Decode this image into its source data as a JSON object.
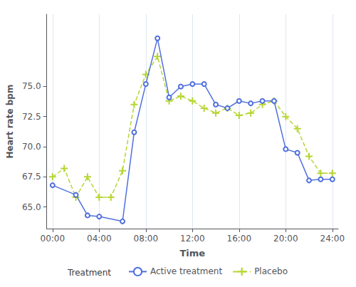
{
  "chart_data": {
    "type": "line",
    "xlabel": "Time",
    "ylabel": "Heart rate bpm",
    "legend_title": "Treatment",
    "series": [
      {
        "name": "Active treatment",
        "x": [
          0,
          2,
          3,
          4,
          6,
          7,
          8,
          9,
          10,
          11,
          12,
          13,
          14,
          15,
          16,
          17,
          18,
          19,
          20,
          21,
          22,
          23,
          24
        ],
        "values": [
          66.8,
          66.0,
          64.3,
          64.2,
          63.8,
          71.2,
          75.2,
          79.0,
          74.1,
          75.0,
          75.2,
          75.2,
          73.5,
          73.2,
          73.8,
          73.6,
          73.8,
          73.8,
          69.8,
          69.5,
          67.2,
          67.3,
          67.3
        ],
        "marker": "circle",
        "line_style": "solid"
      },
      {
        "name": "Placebo",
        "x": [
          0,
          1,
          2,
          3,
          4,
          5,
          6,
          7,
          8,
          9,
          10,
          11,
          12,
          13,
          14,
          15,
          16,
          17,
          18,
          19,
          20,
          21,
          22,
          23,
          24
        ],
        "values": [
          67.5,
          68.2,
          65.8,
          67.5,
          65.8,
          65.8,
          68.0,
          73.5,
          76.0,
          77.5,
          73.8,
          74.2,
          73.8,
          73.2,
          72.8,
          73.2,
          72.6,
          72.8,
          73.5,
          73.8,
          72.5,
          71.5,
          69.2,
          67.8,
          67.8
        ],
        "marker": "plus",
        "line_style": "dashed"
      }
    ],
    "xlim": [
      -0.5,
      24.5
    ],
    "xticks": [
      {
        "value": 0,
        "label": "00:00"
      },
      {
        "value": 4,
        "label": "04:00"
      },
      {
        "value": 8,
        "label": "08:00"
      },
      {
        "value": 12,
        "label": "12:00"
      },
      {
        "value": 16,
        "label": "16:00"
      },
      {
        "value": 20,
        "label": "20:00"
      },
      {
        "value": 24,
        "label": "24:00"
      }
    ],
    "ylim": [
      63.2,
      81.0
    ],
    "yticks": [
      {
        "value": 65.0,
        "label": "65.0"
      },
      67.5,
      {
        "value": 70.0,
        "label": "70.0"
      },
      72.5,
      {
        "value": 75.0,
        "label": "75.0"
      }
    ],
    "grid": "x",
    "legend": "bottom"
  }
}
